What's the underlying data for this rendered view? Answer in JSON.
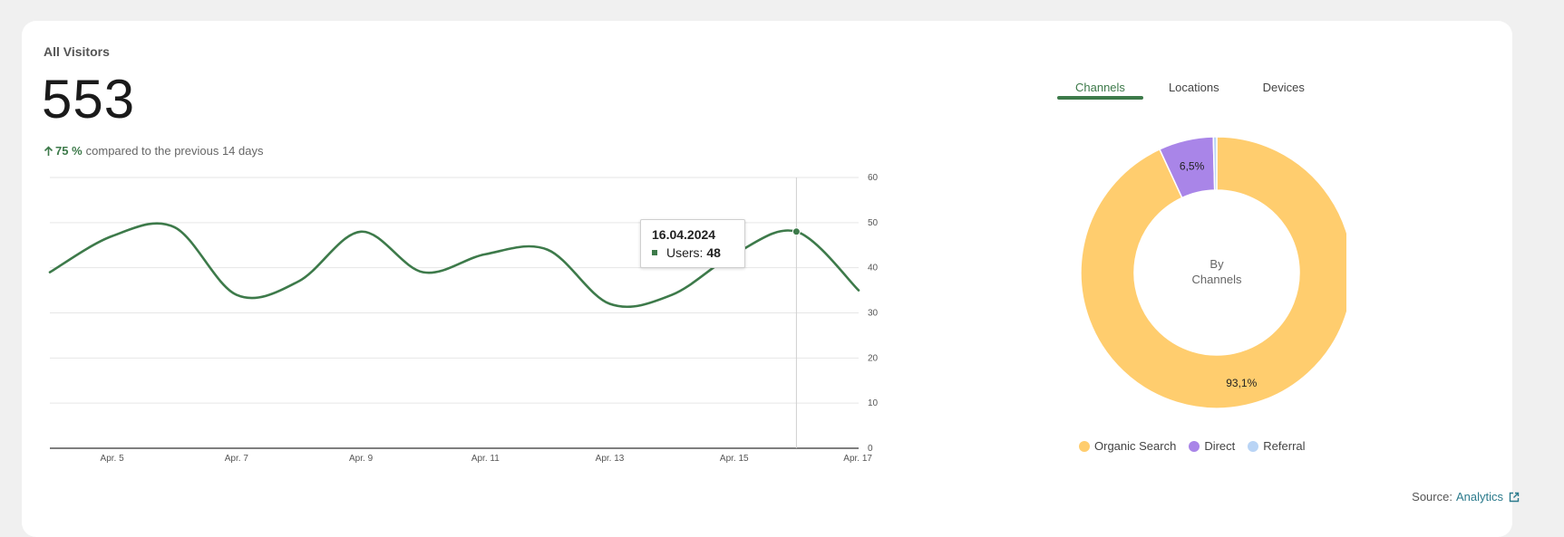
{
  "card": {
    "title": "All Visitors",
    "total": "553",
    "trend_value": "75 %",
    "trend_text": "compared to the previous 14 days"
  },
  "chart_data": [
    {
      "type": "line",
      "title": "",
      "xlabel": "",
      "ylabel": "",
      "x": [
        "Apr. 4",
        "Apr. 5",
        "Apr. 6",
        "Apr. 7",
        "Apr. 8",
        "Apr. 9",
        "Apr. 10",
        "Apr. 11",
        "Apr. 12",
        "Apr. 13",
        "Apr. 14",
        "Apr. 15",
        "Apr. 16",
        "Apr. 17"
      ],
      "x_tick_labels": [
        "Apr. 5",
        "Apr. 7",
        "Apr. 9",
        "Apr. 11",
        "Apr. 13",
        "Apr. 15",
        "Apr. 17"
      ],
      "series": [
        {
          "values": [
            39,
            47,
            49,
            34,
            37,
            48,
            39,
            43,
            44,
            32,
            34,
            43,
            48,
            35
          ]
        }
      ],
      "ylim": [
        0,
        60
      ],
      "y_ticks": [
        0,
        10,
        20,
        30,
        40,
        50,
        60
      ],
      "grid": true,
      "color": "#3d7a4a",
      "highlight_index": 12,
      "tooltip": {
        "date": "16.04.2024",
        "series_label": "Users:",
        "value": "48"
      }
    },
    {
      "type": "pie",
      "title": "",
      "center_line1": "By",
      "center_line2": "Channels",
      "slices": [
        {
          "name": "Organic Search",
          "value": 93.1,
          "label": "93,1%",
          "color": "#ffcd6e"
        },
        {
          "name": "Direct",
          "value": 6.5,
          "label": "6,5%",
          "color": "#a985e8"
        },
        {
          "name": "Referral",
          "value": 0.4,
          "label": "",
          "color": "#b9d4f5"
        }
      ]
    }
  ],
  "tabs": [
    {
      "label": "Channels",
      "active": true
    },
    {
      "label": "Locations",
      "active": false
    },
    {
      "label": "Devices",
      "active": false
    }
  ],
  "legend": [
    {
      "label": "Organic Search",
      "color": "#ffcd6e"
    },
    {
      "label": "Direct",
      "color": "#a985e8"
    },
    {
      "label": "Referral",
      "color": "#b9d4f5"
    }
  ],
  "source": {
    "prefix": "Source:",
    "link": "Analytics",
    "icon": "external-link-icon"
  },
  "icons": {
    "trend": "arrow-up-icon"
  },
  "colors": {
    "accent": "#3d7a4a",
    "link": "#2b7a8c"
  }
}
